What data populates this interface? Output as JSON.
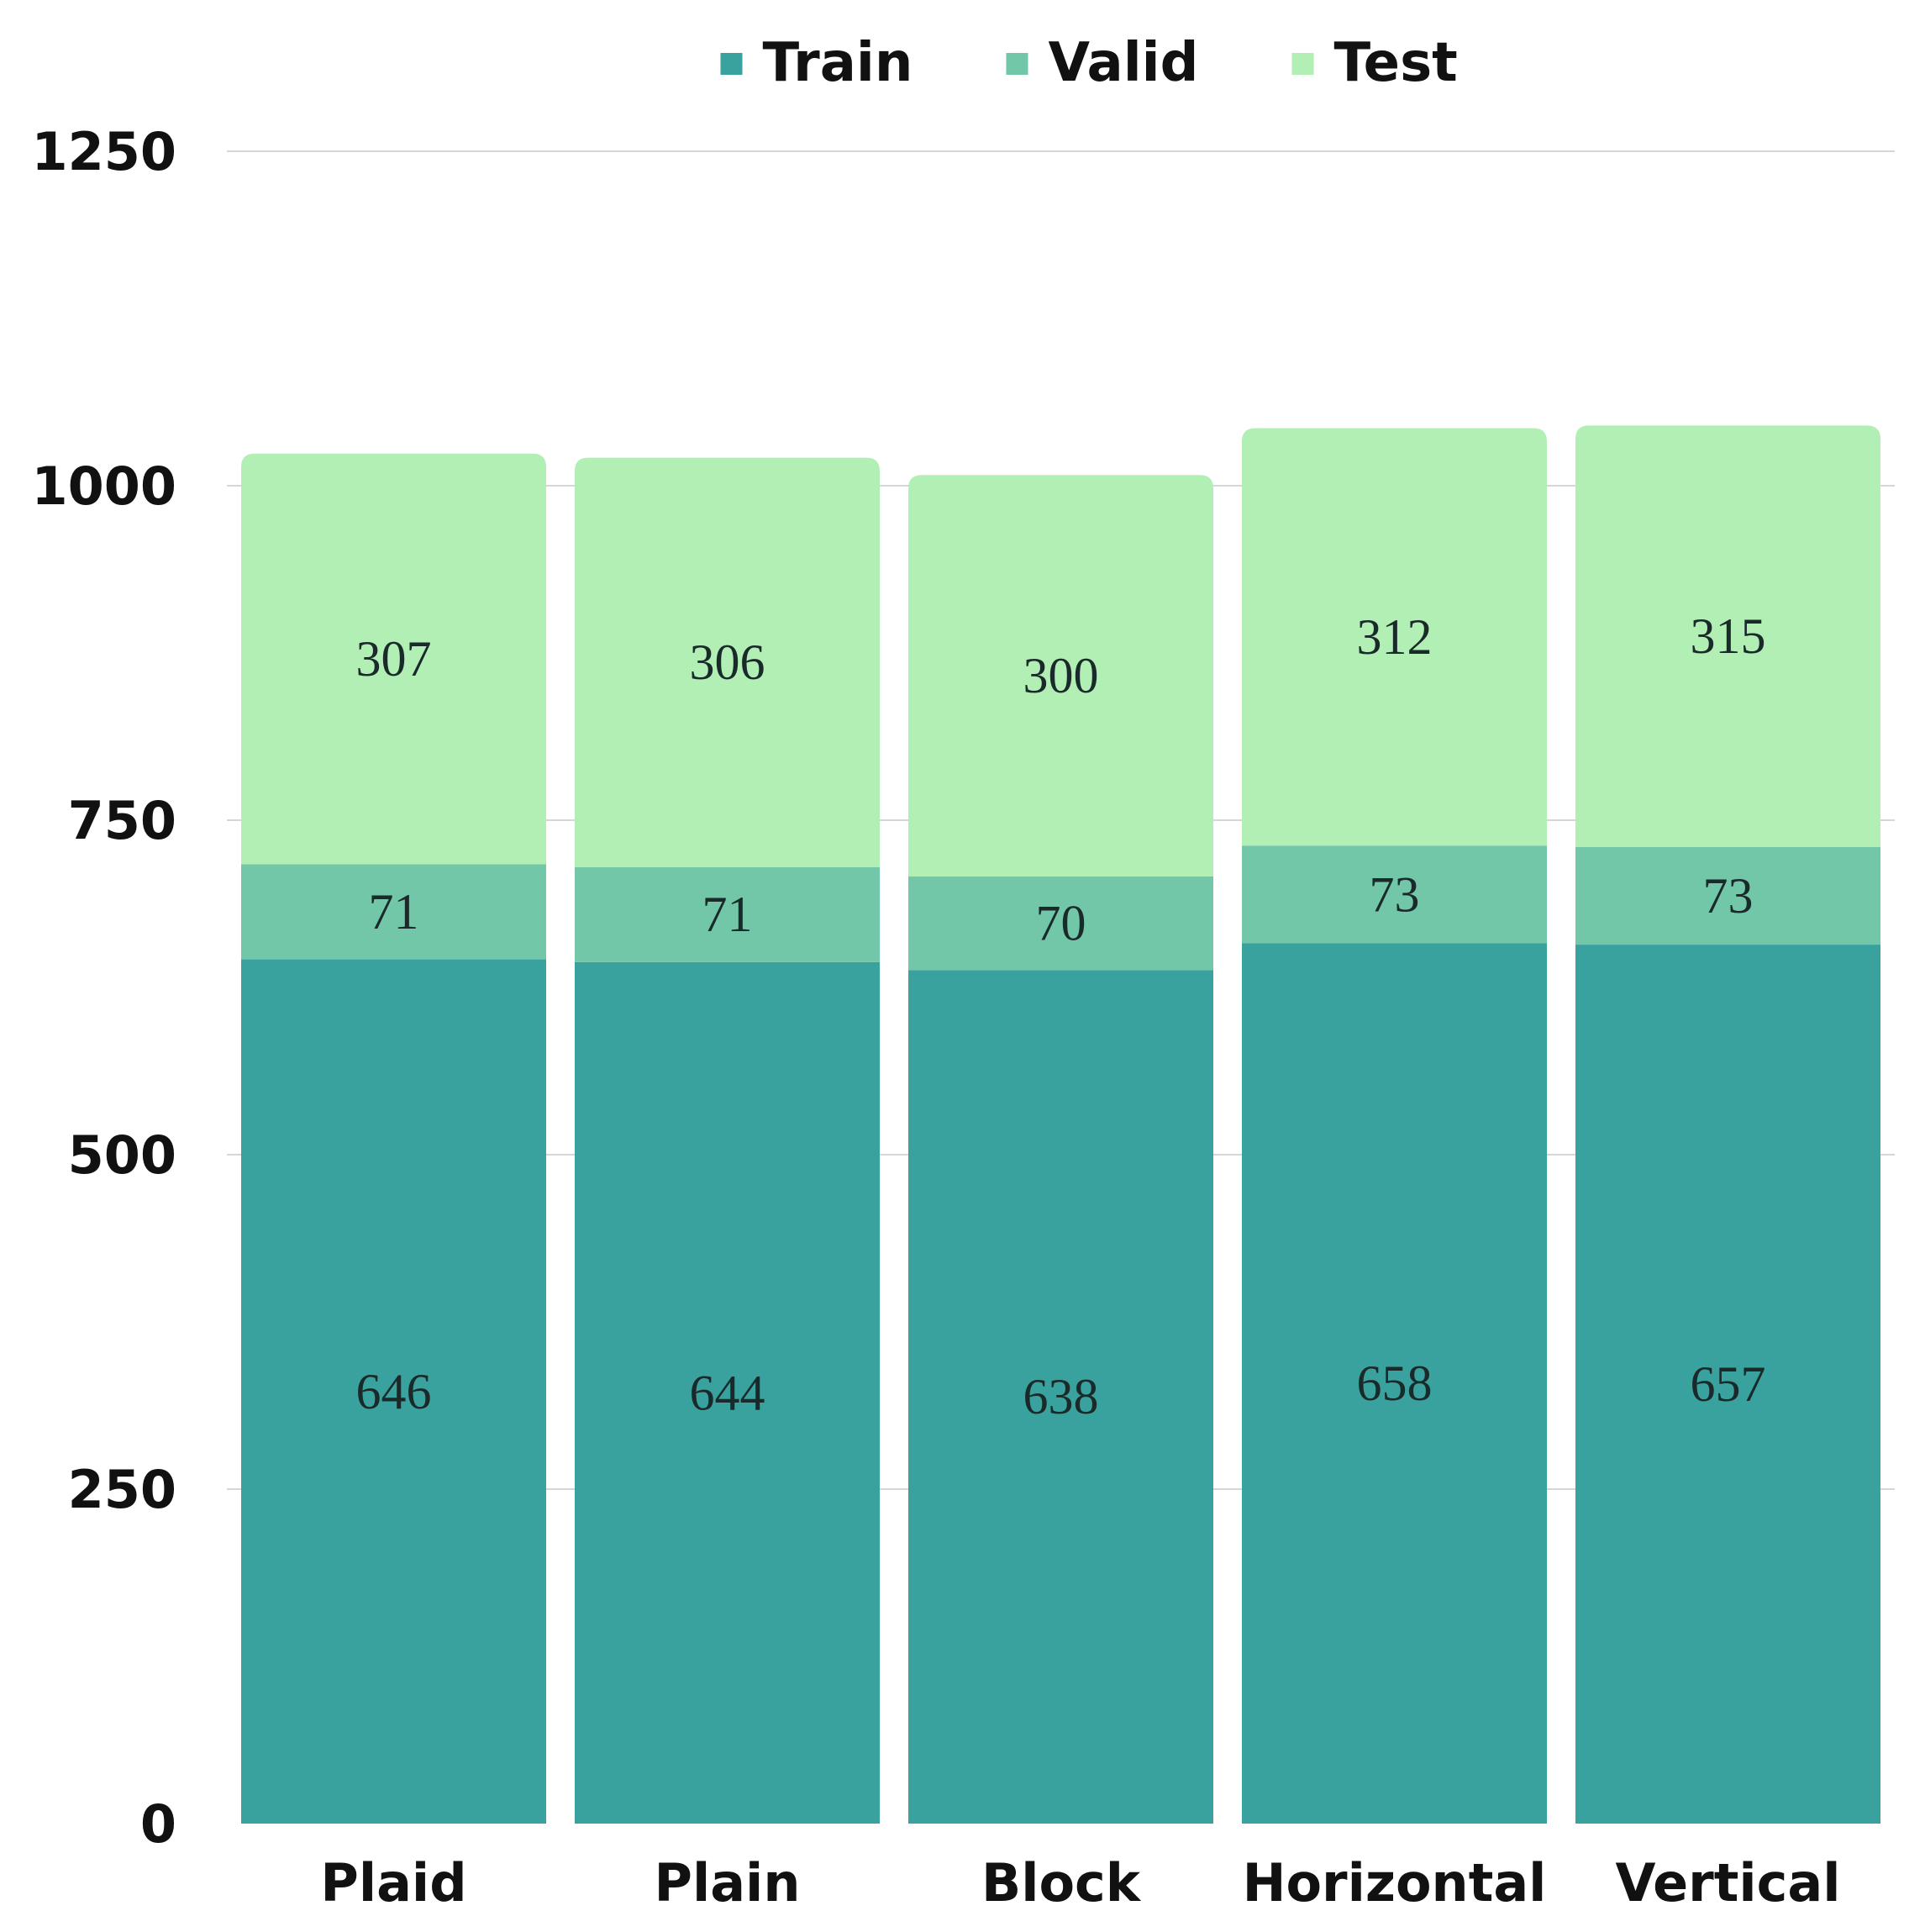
{
  "chart_data": {
    "type": "bar",
    "stacked": true,
    "categories": [
      "Plaid",
      "Plain",
      "Block",
      "Horizontal",
      "Vertical"
    ],
    "series": [
      {
        "name": "Train",
        "color": "#3aa29e",
        "values": [
          646,
          644,
          638,
          658,
          657
        ]
      },
      {
        "name": "Valid",
        "color": "#71c7a8",
        "values": [
          71,
          71,
          70,
          73,
          73
        ]
      },
      {
        "name": "Test",
        "color": "#b2efb4",
        "values": [
          307,
          306,
          300,
          312,
          315
        ]
      }
    ],
    "ylim": [
      0,
      1250
    ],
    "yticks": [
      "0",
      "250",
      "500",
      "750",
      "1000",
      "1250"
    ],
    "grid": true,
    "legend": "top-center"
  }
}
